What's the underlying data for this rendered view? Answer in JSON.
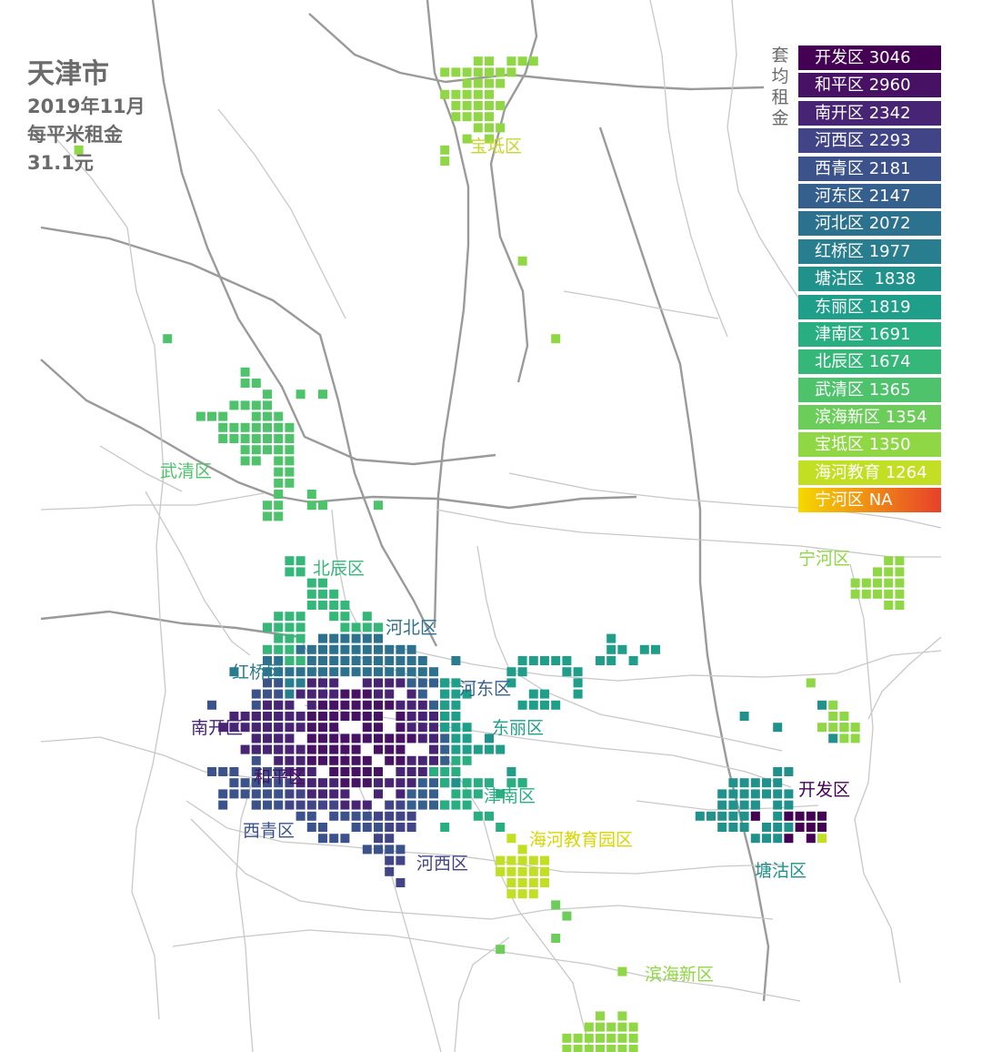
{
  "title": "天津市",
  "subtitle_lines": [
    "2019年11月",
    "每平米租金",
    "31.1元"
  ],
  "vertical_label": "套均租金",
  "legend": [
    {
      "label": "开发区 3046",
      "color": "#440154"
    },
    {
      "label": "和平区 2960",
      "color": "#471164"
    },
    {
      "label": "南开区 2342",
      "color": "#482475"
    },
    {
      "label": "河西区 2293",
      "color": "#414487"
    },
    {
      "label": "西青区 2181",
      "color": "#3b528b"
    },
    {
      "label": "河东区 2147",
      "color": "#355f8d"
    },
    {
      "label": "河北区 2072",
      "color": "#2c728e"
    },
    {
      "label": "红桥区 1977",
      "color": "#287d8e"
    },
    {
      "label": "塘沽区  1838",
      "color": "#21918c"
    },
    {
      "label": "东丽区 1819",
      "color": "#1f9e89"
    },
    {
      "label": "津南区 1691",
      "color": "#28ae80"
    },
    {
      "label": "北辰区 1674",
      "color": "#35b779"
    },
    {
      "label": "武清区 1365",
      "color": "#4ec36b"
    },
    {
      "label": "滨海新区 1354",
      "color": "#6ccd5a"
    },
    {
      "label": "宝坻区 1350",
      "color": "#8fd744"
    },
    {
      "label": "海河教育 1264",
      "color": "#c2df23"
    },
    {
      "label": "宁河区 NA",
      "color": "#f5d800",
      "gradient_end": "#e8402a"
    }
  ],
  "district_labels": [
    {
      "name": "宝坻区",
      "color": "#c8d52a"
    },
    {
      "name": "武清区",
      "color": "#4ec36b"
    },
    {
      "name": "北辰区",
      "color": "#35b779"
    },
    {
      "name": "河北区",
      "color": "#2c728e"
    },
    {
      "name": "红桥区",
      "color": "#287d8e"
    },
    {
      "name": "河东区",
      "color": "#355f8d"
    },
    {
      "name": "东丽区",
      "color": "#1f9e89"
    },
    {
      "name": "南开区",
      "color": "#482475"
    },
    {
      "name": "和平区",
      "color": "#471164"
    },
    {
      "name": "津南区",
      "color": "#28ae80"
    },
    {
      "name": "西青区",
      "color": "#3b528b"
    },
    {
      "name": "河西区",
      "color": "#414487"
    },
    {
      "name": "海河教育园区",
      "color": "#d8d600"
    },
    {
      "name": "开发区",
      "color": "#440154"
    },
    {
      "name": "塘沽区",
      "color": "#21918c"
    },
    {
      "name": "宁河区",
      "color": "#8fd744"
    },
    {
      "name": "滨海新区",
      "color": "#8fd744"
    }
  ]
}
